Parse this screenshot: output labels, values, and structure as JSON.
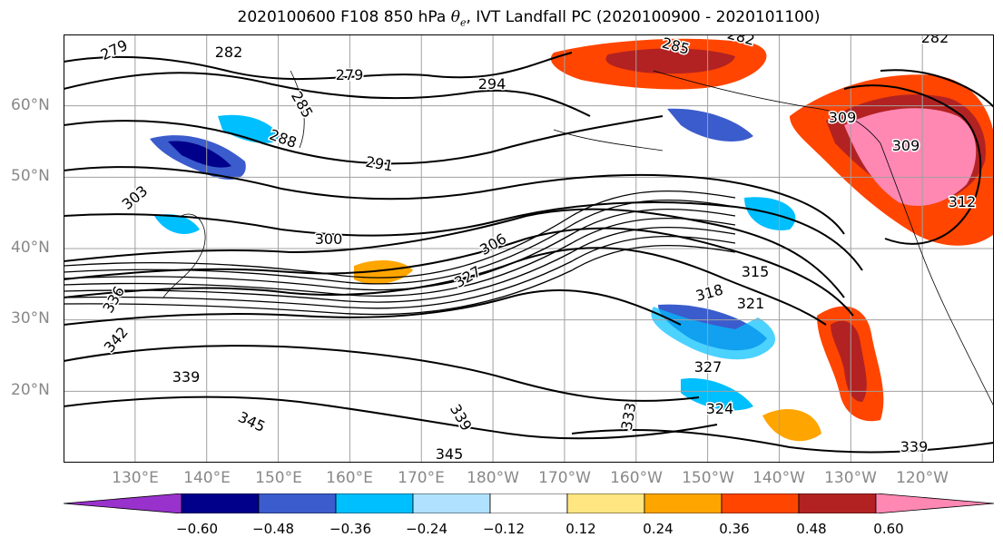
{
  "title": {
    "prefix": "2020100600 F108 850 hPa ",
    "theta": "θ",
    "sub": "e",
    "suffix": ", IVT Landfall PC (2020100900 - 2020101100)"
  },
  "axes": {
    "lat_labels": [
      "60°N",
      "50°N",
      "40°N",
      "30°N",
      "20°N"
    ],
    "lon_labels": [
      "130°E",
      "140°E",
      "150°E",
      "160°E",
      "170°E",
      "180°W",
      "170°W",
      "160°W",
      "150°W",
      "140°W",
      "130°W",
      "120°W"
    ],
    "lat_range": [
      10,
      70
    ],
    "lon_range_deg_east": [
      120,
      250
    ],
    "grid": true
  },
  "contour_labels": [
    "279",
    "282",
    "279",
    "285",
    "282",
    "282",
    "294",
    "288",
    "285",
    "309",
    "291",
    "309",
    "303",
    "312",
    "300",
    "306",
    "315",
    "327",
    "318",
    "321",
    "336",
    "342",
    "339",
    "327",
    "324",
    "339",
    "345",
    "333",
    "345",
    "339"
  ],
  "colorbar": {
    "levels": [
      "−0.60",
      "−0.48",
      "−0.36",
      "−0.24",
      "−0.12",
      "0.12",
      "0.24",
      "0.36",
      "0.48",
      "0.60"
    ],
    "colors": [
      "#9932cc",
      "#00008b",
      "#3b5ccc",
      "#00bfff",
      "#b0e2ff",
      "#ffffff",
      "#ffe680",
      "#ffa500",
      "#ff4500",
      "#b22222",
      "#ff88b3"
    ]
  }
}
